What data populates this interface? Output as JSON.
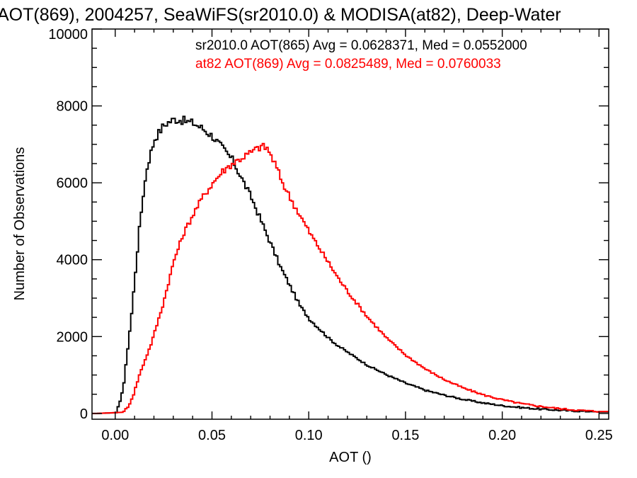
{
  "chart_data": {
    "type": "line",
    "title": "AOT(869), 2004257, SeaWiFS(sr2010.0) & MODISA(at82), Deep-Water",
    "xlabel": "AOT ()",
    "ylabel": "Number of Observations",
    "xlim": [
      -0.012,
      0.255
    ],
    "ylim": [
      -150,
      10000
    ],
    "x_ticks": [
      0.0,
      0.05,
      0.1,
      0.15,
      0.2,
      0.25
    ],
    "x_tick_labels": [
      "0.00",
      "0.05",
      "0.10",
      "0.15",
      "0.20",
      "0.25"
    ],
    "y_ticks": [
      0,
      2000,
      4000,
      6000,
      8000,
      10000
    ],
    "y_tick_labels": [
      "0",
      "2000",
      "4000",
      "6000",
      "8000",
      "10000"
    ],
    "grid": false,
    "step": true,
    "annotations": [
      {
        "text": "sr2010.0 AOT(865) Avg = 0.0628371, Med = 0.0552000",
        "color": "#000000"
      },
      {
        "text": "at82 AOT(869) Avg = 0.0825489, Med = 0.0760033",
        "color": "#ff0000"
      }
    ],
    "series": [
      {
        "color": "#000000",
        "x": [
          -0.01,
          0.0,
          0.002,
          0.004,
          0.006,
          0.008,
          0.01,
          0.012,
          0.014,
          0.016,
          0.018,
          0.02,
          0.022,
          0.024,
          0.026,
          0.028,
          0.03,
          0.033,
          0.036,
          0.04,
          0.045,
          0.05,
          0.055,
          0.06,
          0.065,
          0.07,
          0.075,
          0.08,
          0.085,
          0.09,
          0.095,
          0.1,
          0.105,
          0.11,
          0.115,
          0.12,
          0.13,
          0.14,
          0.15,
          0.16,
          0.17,
          0.18,
          0.19,
          0.2,
          0.21,
          0.22,
          0.23,
          0.24,
          0.25
        ],
        "y": [
          0,
          20,
          300,
          800,
          1700,
          2600,
          3700,
          4800,
          5700,
          6400,
          6800,
          7150,
          7300,
          7450,
          7550,
          7600,
          7650,
          7640,
          7600,
          7550,
          7400,
          7200,
          6900,
          6600,
          6100,
          5600,
          5000,
          4400,
          3800,
          3300,
          2800,
          2450,
          2200,
          1950,
          1750,
          1580,
          1250,
          1000,
          780,
          600,
          470,
          360,
          270,
          200,
          150,
          110,
          80,
          60,
          40
        ]
      },
      {
        "color": "#ff0000",
        "x": [
          -0.01,
          0.003,
          0.006,
          0.009,
          0.012,
          0.015,
          0.018,
          0.021,
          0.024,
          0.027,
          0.03,
          0.035,
          0.04,
          0.045,
          0.05,
          0.055,
          0.06,
          0.065,
          0.07,
          0.075,
          0.078,
          0.082,
          0.086,
          0.09,
          0.095,
          0.1,
          0.105,
          0.11,
          0.115,
          0.12,
          0.13,
          0.14,
          0.15,
          0.16,
          0.17,
          0.18,
          0.19,
          0.2,
          0.21,
          0.22,
          0.23,
          0.24,
          0.25
        ],
        "y": [
          0,
          30,
          150,
          500,
          1000,
          1400,
          1800,
          2300,
          2800,
          3400,
          4000,
          4700,
          5200,
          5650,
          6000,
          6300,
          6500,
          6650,
          6800,
          6950,
          6900,
          6500,
          6000,
          5600,
          5150,
          4700,
          4300,
          3900,
          3500,
          3150,
          2500,
          1950,
          1500,
          1150,
          870,
          650,
          480,
          350,
          250,
          180,
          120,
          80,
          50
        ]
      }
    ]
  }
}
